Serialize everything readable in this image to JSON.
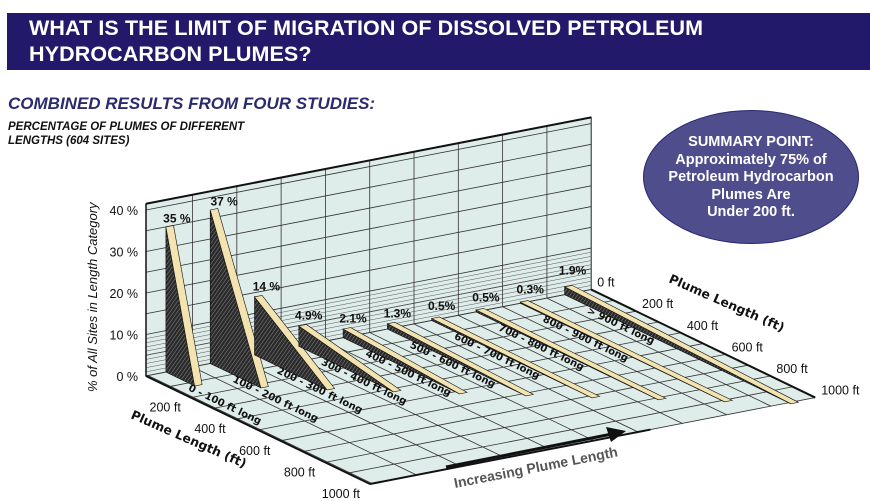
{
  "header": {
    "title_line1": "WHAT IS THE LIMIT OF MIGRATION OF DISSOLVED PETROLEUM",
    "title_line2": "HYDROCARBON PLUMES?"
  },
  "subtitle": "COMBINED RESULTS FROM FOUR STUDIES:",
  "summary": {
    "lines": [
      "SUMMARY POINT:",
      "Approximately 75% of",
      "Petroleum Hydrocarbon",
      "Plumes Are",
      "Under 200 ft."
    ]
  },
  "colors": {
    "banner": "#22196a",
    "summary_fill": "#4f4d8c",
    "wall": "#deecea",
    "bar_dark": "#3a3a3a",
    "bar_top": "#f3e3b0"
  },
  "chart_data": {
    "type": "bar",
    "title_line1": "PERCENTAGE OF PLUMES OF DIFFERENT",
    "title_line2": "LENGTHS (604 SITES)",
    "categories": [
      "0 - 100 ft long",
      "100 - 200 ft long",
      "200 - 300 ft long",
      "300 - 400 ft long",
      "400 - 500 ft long",
      "500 - 600 ft long",
      "600 - 700 ft long",
      "700 - 800 ft long",
      "800 - 900 ft long",
      "> 900 ft long"
    ],
    "values": [
      35,
      37,
      14,
      4.9,
      2.1,
      1.3,
      0.5,
      0.5,
      0.3,
      1.9
    ],
    "value_labels": [
      "35 %",
      "37 %",
      "14 %",
      "4.9%",
      "2.1%",
      "1.3%",
      "0.5%",
      "0.5%",
      "0.3%",
      "1.9%"
    ],
    "ylabel": "% of All Sites in Length Category",
    "ylim": [
      0,
      40
    ],
    "yticks": [
      "0 %",
      "10 %",
      "20 %",
      "30 %",
      "40 %"
    ],
    "depth_label": "Plume Length (ft)",
    "depth_ticks_right": [
      "0 ft",
      "200 ft",
      "400 ft",
      "600 ft",
      "800 ft",
      "1000 ft"
    ],
    "depth_ticks_left": [
      "200 ft",
      "400 ft",
      "600 ft",
      "800 ft",
      "1000 ft"
    ],
    "xlabel": "Increasing Plume Length",
    "grid": true
  }
}
